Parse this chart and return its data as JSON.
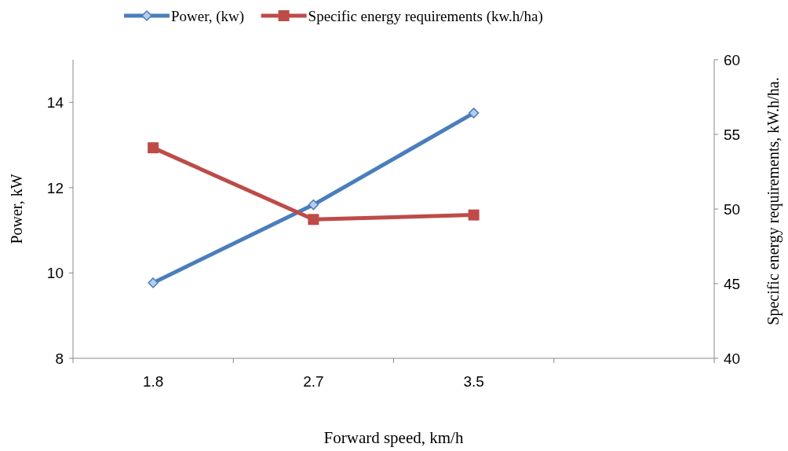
{
  "chart_data": {
    "type": "line",
    "xlabel": "Forward speed, km/h",
    "ylabel": "Power, kW",
    "y2label": "Specific energy requirements, kW.h/ha.",
    "categories": [
      "1.8",
      "2.7",
      "3.5",
      null
    ],
    "series": [
      {
        "name": "Power, (kw)",
        "color": "#4a7ebb",
        "values": [
          9.77,
          11.6,
          13.75,
          null
        ],
        "marker": "diamond"
      },
      {
        "name": "Specific energy  requirements (kw.h/ha)",
        "color": "#be4b48",
        "values": [
          54.1,
          49.3,
          49.6,
          null
        ],
        "marker": "square",
        "axis": "y2"
      }
    ],
    "ylim": [
      8,
      15
    ],
    "yticks": [
      8,
      10,
      12,
      14
    ],
    "y2lim": [
      40,
      60
    ],
    "y2ticks": [
      40,
      45,
      50,
      55,
      60
    ],
    "legend": "top",
    "grid": false
  }
}
